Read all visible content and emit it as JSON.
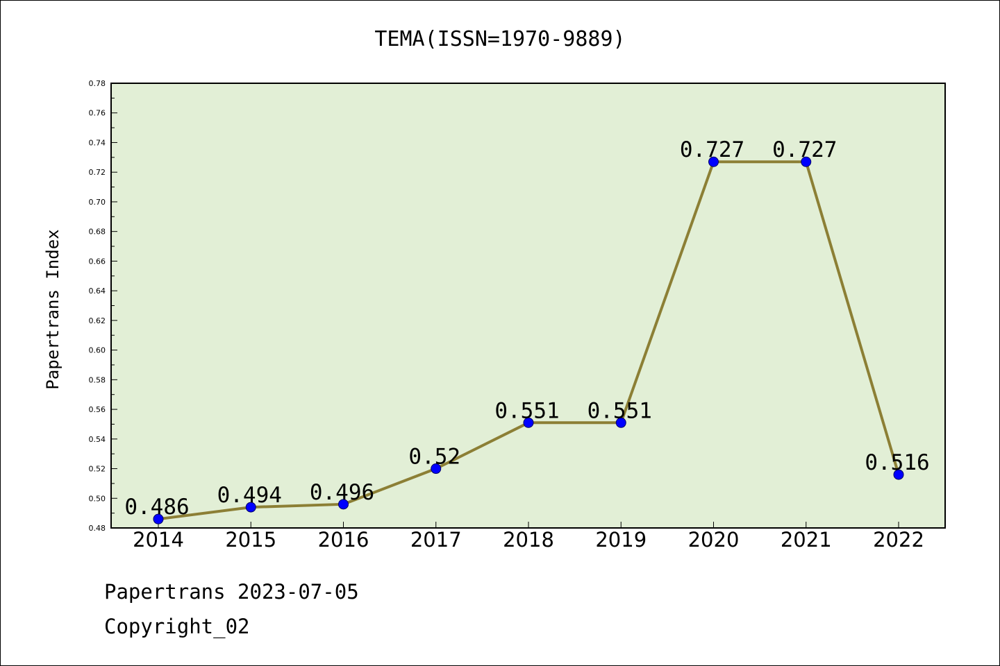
{
  "chart_data": {
    "type": "line",
    "title": "TEMA(ISSN=1970-9889)",
    "xlabel": "",
    "ylabel": "Papertrans Index",
    "categories": [
      "2014",
      "2015",
      "2016",
      "2017",
      "2018",
      "2019",
      "2020",
      "2021",
      "2022"
    ],
    "values": [
      0.486,
      0.494,
      0.496,
      0.52,
      0.551,
      0.551,
      0.727,
      0.727,
      0.516
    ],
    "data_labels": [
      "0.486",
      "0.494",
      "0.496",
      "0.52",
      "0.551",
      "0.551",
      "0.727",
      "0.727",
      "0.516"
    ],
    "ylim": [
      0.48,
      0.78
    ],
    "yticks": [
      "0.48",
      "0.50",
      "0.52",
      "0.54",
      "0.56",
      "0.58",
      "0.60",
      "0.62",
      "0.64",
      "0.66",
      "0.68",
      "0.70",
      "0.72",
      "0.74",
      "0.76",
      "0.78"
    ],
    "grid": false,
    "legend": "none",
    "colors": {
      "line": "#8c7f35",
      "marker": "#0000ff",
      "plot_background": "#e2efd6"
    }
  },
  "footer": {
    "line1": "Papertrans 2023-07-05",
    "line2": "Copyright_02"
  }
}
